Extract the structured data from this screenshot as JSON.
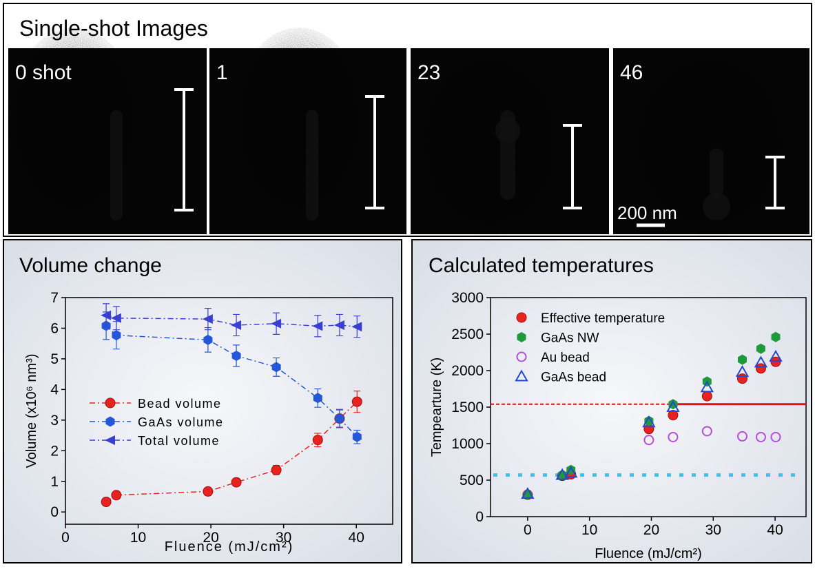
{
  "images": {
    "title": "Single-shot Images",
    "labels": [
      "0 shot",
      "1",
      "23",
      "46"
    ],
    "scale_bar": "200 nm"
  },
  "chart_data": [
    {
      "type": "line",
      "title": "Volume change",
      "x_label": "Fluence (mJ/cm²)",
      "y_label": "Volume (x10⁶ nm³)",
      "x": [
        5.6,
        7,
        19.6,
        23.5,
        29,
        34.7,
        37.7,
        40.1
      ],
      "xlim": [
        0,
        45
      ],
      "xticks": [
        0,
        10,
        20,
        30,
        40
      ],
      "ylim": [
        -0.4,
        7
      ],
      "yticks": [
        0,
        1,
        2,
        3,
        4,
        5,
        6,
        7
      ],
      "legend": "lower left",
      "series": [
        {
          "name": "Bead volume",
          "color": "#e8231f",
          "marker": "circle",
          "values": [
            0.33,
            0.55,
            0.67,
            0.97,
            1.37,
            2.35,
            3.05,
            3.6
          ],
          "errors": [
            0.05,
            0.1,
            0.12,
            0.12,
            0.15,
            0.22,
            0.28,
            0.35
          ]
        },
        {
          "name": "GaAs volume",
          "color": "#2456d8",
          "marker": "hexagon",
          "values": [
            6.08,
            5.77,
            5.62,
            5.1,
            4.73,
            3.72,
            3.05,
            2.45
          ],
          "errors": [
            0.45,
            0.45,
            0.4,
            0.35,
            0.3,
            0.3,
            0.3,
            0.22
          ]
        },
        {
          "name": "Total volume",
          "color": "#3b3fd0",
          "marker": "triangle-left",
          "values": [
            6.42,
            6.33,
            6.3,
            6.1,
            6.15,
            6.07,
            6.1,
            6.05
          ],
          "errors": [
            0.38,
            0.38,
            0.35,
            0.35,
            0.35,
            0.35,
            0.35,
            0.35
          ]
        }
      ]
    },
    {
      "type": "scatter",
      "title": "Calculated temperatures",
      "x_label": "Fluence (mJ/cm²)",
      "y_label": "Tempearture (K)",
      "x": [
        0,
        5.6,
        7,
        19.6,
        23.5,
        29,
        34.7,
        37.7,
        40.1
      ],
      "xlim": [
        -6,
        45
      ],
      "xticks": [
        0,
        10,
        20,
        30,
        40
      ],
      "ylim": [
        0,
        3000
      ],
      "yticks": [
        0,
        500,
        1000,
        1500,
        2000,
        2500,
        3000
      ],
      "legend": "upper left",
      "series": [
        {
          "name": "Effective temperature",
          "color": "#e8231f",
          "marker": "circle",
          "values": [
            300,
            560,
            580,
            1200,
            1390,
            1650,
            1890,
            2030,
            2120
          ]
        },
        {
          "name": "GaAs NW",
          "color": "#1f9a3a",
          "marker": "hexagon",
          "values": [
            300,
            570,
            640,
            1310,
            1540,
            1850,
            2150,
            2300,
            2460
          ]
        },
        {
          "name": "Au bead",
          "color": "#b44fd8",
          "marker": "open-circle",
          "values": [
            null,
            null,
            null,
            1050,
            1090,
            1170,
            1100,
            1090,
            1090
          ]
        },
        {
          "name": "GaAs bead",
          "color": "#2448d0",
          "marker": "open-triangle",
          "values": [
            310,
            570,
            600,
            1290,
            1500,
            1770,
            1980,
            2110,
            2190
          ]
        }
      ],
      "ref_lines": [
        {
          "value": 1540,
          "color": "#e01010",
          "solid_from": 23.5
        },
        {
          "value": 570,
          "color": "#45c0e6",
          "style": "dotted"
        }
      ]
    }
  ]
}
